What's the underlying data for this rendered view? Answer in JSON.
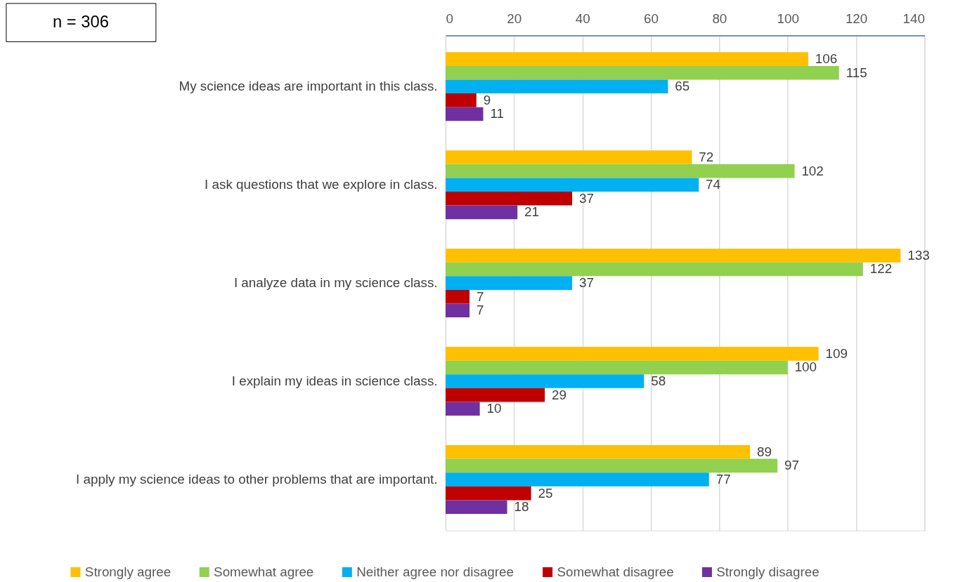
{
  "chart_data": {
    "type": "bar",
    "orientation": "horizontal",
    "categories": [
      "My science ideas are important in this class.",
      "I ask questions that we explore in class.",
      "I analyze data in my science class.",
      "I explain my ideas in science class.",
      "I apply my science ideas to other problems that are important."
    ],
    "series": [
      {
        "name": "Strongly agree",
        "color": "#ffc000",
        "values": [
          106,
          72,
          133,
          109,
          89
        ]
      },
      {
        "name": "Somewhat agree",
        "color": "#92d050",
        "values": [
          115,
          102,
          122,
          100,
          97
        ]
      },
      {
        "name": "Neither agree nor disagree",
        "color": "#00b0f0",
        "values": [
          65,
          74,
          37,
          58,
          77
        ]
      },
      {
        "name": "Somewhat disagree",
        "color": "#c00000",
        "values": [
          9,
          37,
          7,
          29,
          25
        ]
      },
      {
        "name": "Strongly disagree",
        "color": "#7030a0",
        "values": [
          11,
          21,
          7,
          10,
          18
        ]
      }
    ],
    "xlim": [
      0,
      140
    ],
    "xticks": [
      0,
      20,
      40,
      60,
      80,
      100,
      120,
      140
    ],
    "grid": "x",
    "legend": "bottom",
    "data_labels": true,
    "annotations": [
      "n = 306"
    ]
  }
}
